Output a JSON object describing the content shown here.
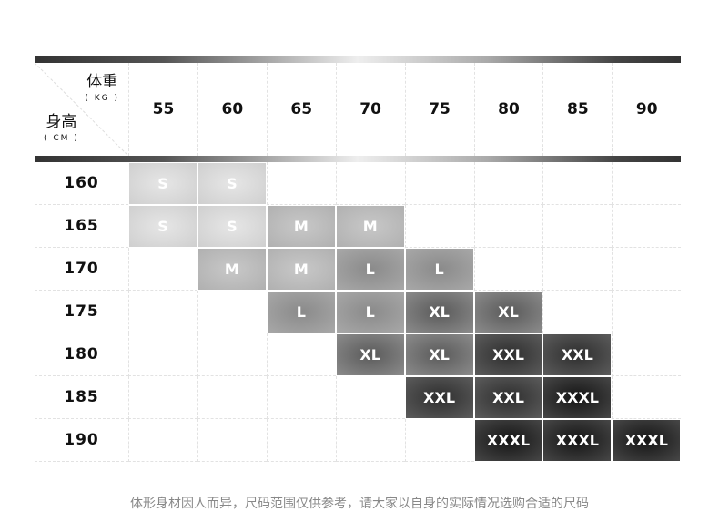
{
  "header": {
    "weight_label": "体重",
    "weight_unit": "( KG )",
    "height_label": "身高",
    "height_unit": "( CM )",
    "weights": [
      "55",
      "60",
      "65",
      "70",
      "75",
      "80",
      "85",
      "90"
    ]
  },
  "rows": [
    {
      "height": "160",
      "sizes": [
        "S",
        "S",
        "",
        "",
        "",
        "",
        "",
        ""
      ]
    },
    {
      "height": "165",
      "sizes": [
        "S",
        "S",
        "M",
        "M",
        "",
        "",
        "",
        ""
      ]
    },
    {
      "height": "170",
      "sizes": [
        "",
        "M",
        "M",
        "L",
        "L",
        "",
        "",
        ""
      ]
    },
    {
      "height": "175",
      "sizes": [
        "",
        "",
        "L",
        "L",
        "XL",
        "XL",
        "",
        ""
      ]
    },
    {
      "height": "180",
      "sizes": [
        "",
        "",
        "",
        "XL",
        "XL",
        "XXL",
        "XXL",
        ""
      ]
    },
    {
      "height": "185",
      "sizes": [
        "",
        "",
        "",
        "",
        "XXL",
        "XXL",
        "XXXL",
        ""
      ]
    },
    {
      "height": "190",
      "sizes": [
        "",
        "",
        "",
        "",
        "",
        "XXXL",
        "XXXL",
        "XXXL"
      ]
    }
  ],
  "size_colors": {
    "S": [
      "#e6e6e6",
      "#cfcfcf"
    ],
    "M": [
      "#c8c8c8",
      "#b0b0b0"
    ],
    "L": [
      "#8a8a8a",
      "#a8a8a8"
    ],
    "XL": [
      "#5a5a5a",
      "#8c8c8c"
    ],
    "XXL": [
      "#2e2e2e",
      "#5c5c5c"
    ],
    "XXXL": [
      "#151515",
      "#474747"
    ]
  },
  "footer": "体形身材因人而异，尺码范围仅供参考，请大家以自身的实际情况选购合适的尺码"
}
